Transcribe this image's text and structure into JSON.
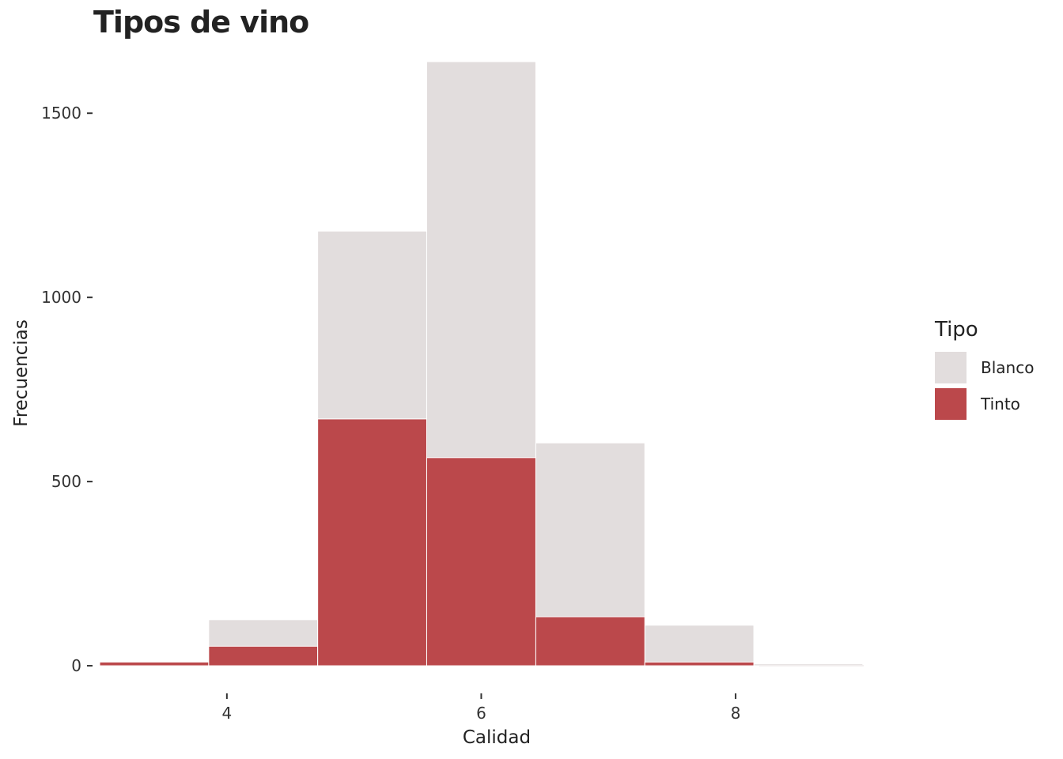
{
  "chart_data": {
    "type": "bar",
    "title": "Tipos de vino",
    "xlabel": "Calidad",
    "ylabel": "Frecuencias",
    "xlim": [
      2.95,
      9.15
    ],
    "ylim": [
      -60,
      1640
    ],
    "x_ticks": [
      4,
      6,
      8
    ],
    "y_ticks": [
      0,
      500,
      1000,
      1500
    ],
    "bins": [
      {
        "x0": 3.0,
        "x1": 3.857
      },
      {
        "x0": 3.857,
        "x1": 4.714
      },
      {
        "x0": 4.714,
        "x1": 5.571
      },
      {
        "x0": 5.571,
        "x1": 6.429
      },
      {
        "x0": 6.429,
        "x1": 7.286
      },
      {
        "x0": 7.286,
        "x1": 8.143
      },
      {
        "x0": 8.143,
        "x1": 9.0
      }
    ],
    "series": [
      {
        "name": "Blanco",
        "color": "#e2dddd",
        "values": [
          10,
          125,
          1180,
          1640,
          605,
          110,
          5
        ]
      },
      {
        "name": "Tinto",
        "color": "#bb484b",
        "values": [
          10,
          53,
          670,
          565,
          133,
          10,
          0
        ]
      }
    ],
    "legend": {
      "title": "Tipo",
      "position": "right"
    },
    "grid": false
  }
}
